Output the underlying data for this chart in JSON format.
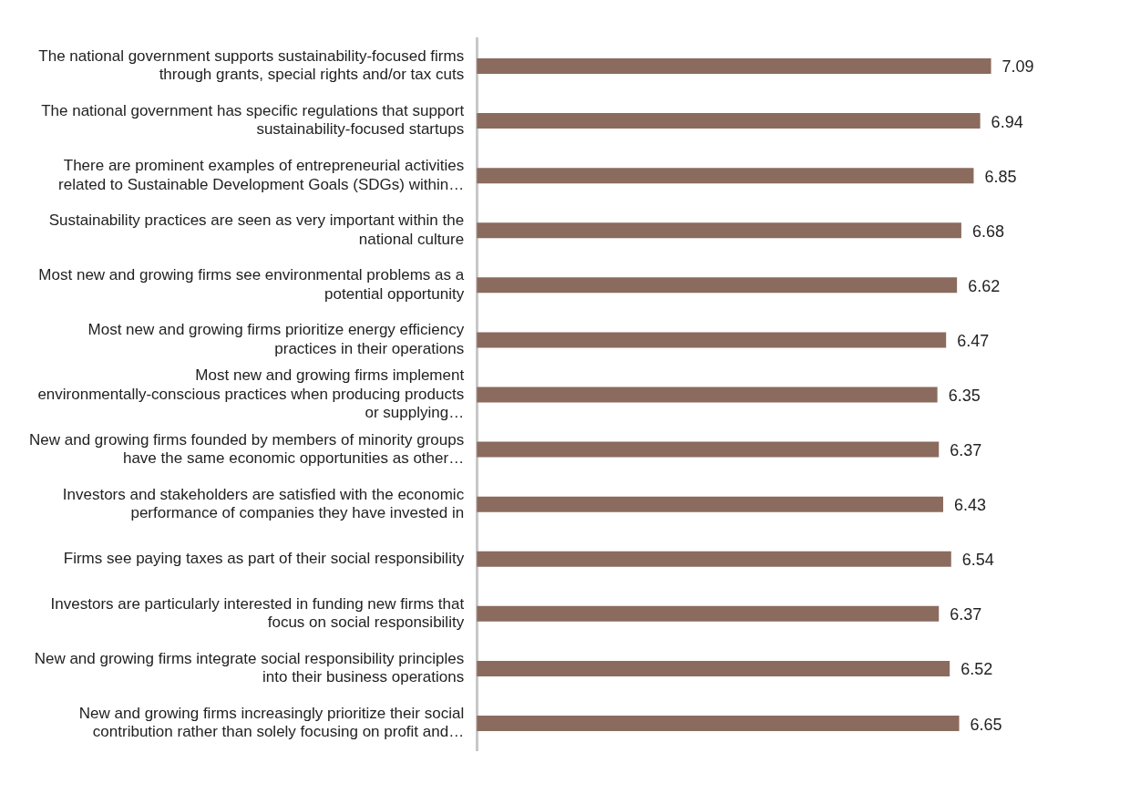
{
  "chart_data": {
    "type": "bar",
    "orientation": "horizontal",
    "categories": [
      "The national government supports sustainability-focused firms through grants, special rights and/or tax cuts",
      "The national government has specific regulations that support sustainability-focused startups",
      "There are prominent examples of entrepreneurial activities related to Sustainable Development Goals (SDGs) within…",
      "Sustainability practices are seen as very important within the national culture",
      "Most new and growing firms see environmental problems as a potential opportunity",
      "Most new and growing firms prioritize energy efficiency practices in their operations",
      "Most new and growing firms implement environmentally-conscious practices when producing products or supplying…",
      "New and growing firms founded by members of minority groups have the same economic opportunities as other…",
      "Investors and stakeholders are satisfied with the economic performance of companies they have invested in",
      "Firms see paying taxes as part of their social responsibility",
      "Investors are particularly interested in funding new firms that focus on social responsibility",
      "New and growing firms integrate social responsibility principles into their business operations",
      "New and growing firms increasingly prioritize their social contribution rather than solely focusing on profit and…"
    ],
    "values": [
      7.09,
      6.94,
      6.85,
      6.68,
      6.62,
      6.47,
      6.35,
      6.37,
      6.43,
      6.54,
      6.37,
      6.52,
      6.65
    ],
    "color": "#8b6b5e",
    "data_labels": true,
    "tick_labels": "y",
    "legend": false
  }
}
